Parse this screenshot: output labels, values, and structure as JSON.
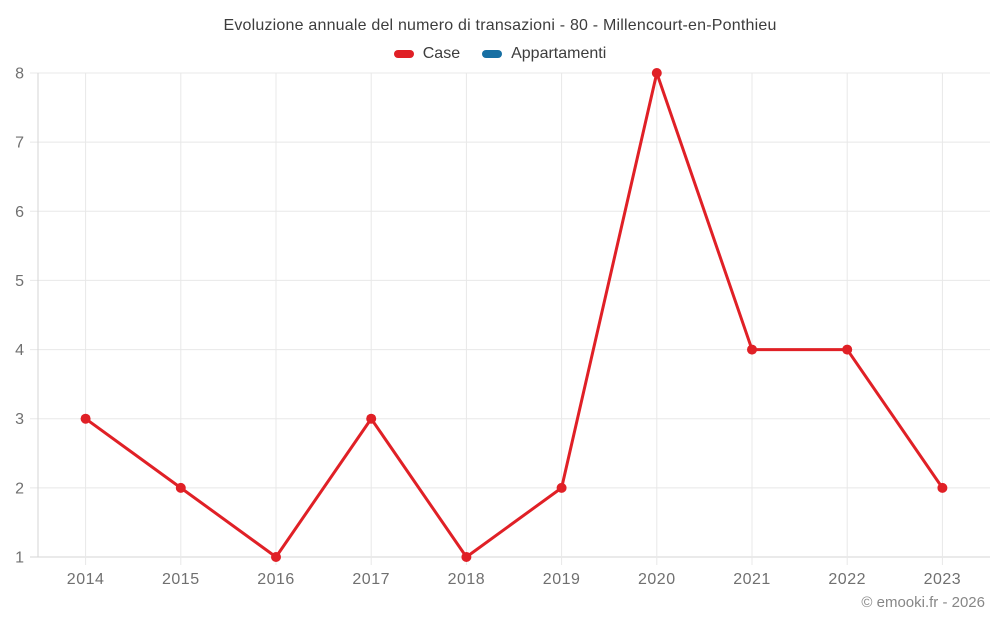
{
  "watermark": "© emooki.fr - 2026",
  "chart_data": {
    "type": "line",
    "title": "Evoluzione annuale del numero di transazioni - 80 - Millencourt-en-Ponthieu",
    "categories": [
      "2014",
      "2015",
      "2016",
      "2017",
      "2018",
      "2019",
      "2020",
      "2021",
      "2022",
      "2023"
    ],
    "series": [
      {
        "name": "Case",
        "color": "#e02026",
        "values": [
          3,
          2,
          1,
          3,
          1,
          2,
          8,
          4,
          4,
          2
        ]
      },
      {
        "name": "Appartamenti",
        "color": "#176fa3",
        "values": []
      }
    ],
    "y_ticks": [
      1,
      2,
      3,
      4,
      5,
      6,
      7,
      8
    ],
    "ylim": [
      1,
      8
    ],
    "xlabel": "",
    "ylabel": "",
    "grid": true,
    "legend_position": "top",
    "colors": {
      "grid": "#e8e8e8",
      "axis": "#d6d6d6",
      "tick_label": "#707070",
      "title": "#3d3d3d",
      "watermark": "#878787"
    }
  }
}
